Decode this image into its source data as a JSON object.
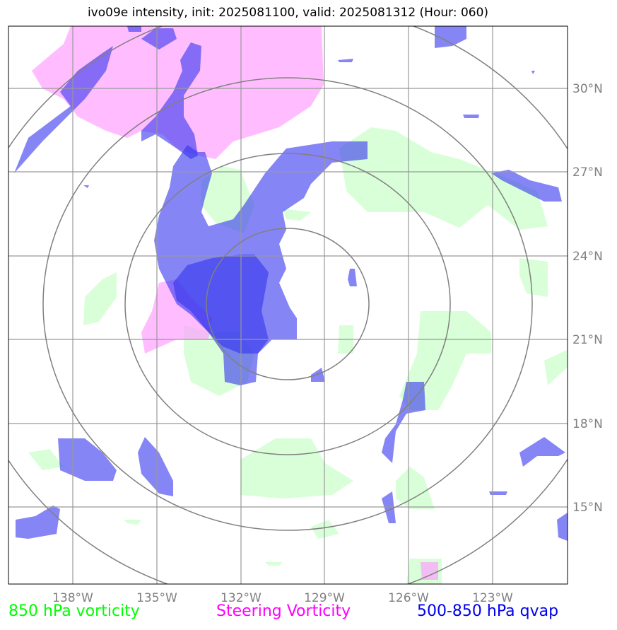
{
  "title": "ivo09e intensity, init: 2025081100, valid: 2025081312 (Hour: 060)",
  "lon_labels": [
    "138°W",
    "135°W",
    "132°W",
    "129°W",
    "126°W",
    "123°W"
  ],
  "lat_labels": [
    "30°N",
    "27°N",
    "24°N",
    "21°N",
    "18°N",
    "15°N"
  ],
  "legend": {
    "vort850": "850 hPa vorticity",
    "steering": "Steering Vorticity",
    "qvap": "500-850 hPa qvap"
  },
  "colors": {
    "vort850": "#ccffcc",
    "steering": "#ff99ff",
    "qvap": "#3333ee",
    "grid": "#999999",
    "range_ring": "#808080",
    "tick_text": "#808080"
  }
}
